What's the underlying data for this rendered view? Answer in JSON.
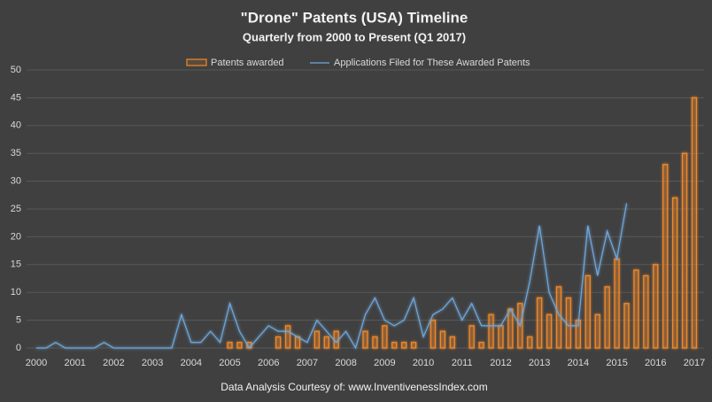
{
  "chart_data": {
    "type": "bar-line",
    "title": "\"Drone\" Patents (USA) Timeline",
    "subtitle": "Quarterly from 2000  to Present (Q1 2017)",
    "footer": "Data Analysis Courtesy of: www.InventivenessIndex.com",
    "categories": [
      "2000",
      null,
      null,
      null,
      "2001",
      null,
      null,
      null,
      "2002",
      null,
      null,
      null,
      "2003",
      null,
      null,
      null,
      "2004",
      null,
      null,
      null,
      "2005",
      null,
      null,
      null,
      "2006",
      null,
      null,
      null,
      "2007",
      null,
      null,
      null,
      "2008",
      null,
      null,
      null,
      "2009",
      null,
      null,
      null,
      "2010",
      null,
      null,
      null,
      "2011",
      null,
      null,
      null,
      "2012",
      null,
      null,
      null,
      "2013",
      null,
      null,
      null,
      "2014",
      null,
      null,
      null,
      "2015",
      null,
      null,
      null,
      "2016",
      null,
      null,
      null,
      "2017"
    ],
    "series": [
      {
        "name": "Patents awarded",
        "type": "bar",
        "color": "#f0892a",
        "values": [
          0,
          0,
          0,
          0,
          0,
          0,
          0,
          0,
          0,
          0,
          0,
          0,
          0,
          0,
          0,
          0,
          0,
          0,
          0,
          0,
          1,
          1,
          1,
          0,
          0,
          2,
          4,
          2,
          0,
          3,
          2,
          3,
          0,
          0,
          3,
          2,
          4,
          1,
          1,
          1,
          0,
          5,
          3,
          2,
          0,
          4,
          1,
          6,
          4,
          7,
          8,
          2,
          9,
          6,
          11,
          9,
          5,
          13,
          6,
          11,
          16,
          8,
          14,
          13,
          15,
          33,
          27,
          35,
          45
        ]
      },
      {
        "name": "Applications Filed for These Awarded Patents",
        "type": "line",
        "color": "#6fa8dc",
        "values": [
          0,
          0,
          1,
          0,
          0,
          0,
          0,
          1,
          0,
          0,
          0,
          0,
          0,
          0,
          0,
          6,
          1,
          1,
          3,
          1,
          8,
          3,
          0,
          2,
          4,
          3,
          3,
          2,
          1,
          5,
          3,
          1,
          3,
          0,
          6,
          9,
          5,
          4,
          5,
          9,
          2,
          6,
          7,
          9,
          5,
          8,
          4,
          4,
          4,
          7,
          4,
          12,
          22,
          10,
          6,
          4,
          4,
          22,
          13,
          21,
          16,
          26,
          null,
          null,
          null,
          null,
          null,
          null,
          null
        ]
      }
    ],
    "ylim": [
      0,
      50
    ],
    "yticks": [
      0,
      5,
      10,
      15,
      20,
      25,
      30,
      35,
      40,
      45,
      50
    ],
    "grid": true,
    "legend": "top"
  }
}
